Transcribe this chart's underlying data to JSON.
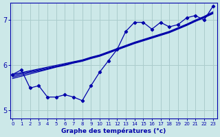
{
  "xlabel": "Graphe des températures (°c)",
  "bg_color": "#cce8e8",
  "grid_color": "#aacccc",
  "line_color": "#0000aa",
  "x_ticks": [
    0,
    1,
    2,
    3,
    4,
    5,
    6,
    7,
    8,
    9,
    10,
    11,
    12,
    13,
    14,
    15,
    16,
    17,
    18,
    19,
    20,
    21,
    22,
    23
  ],
  "y_ticks": [
    5,
    6,
    7
  ],
  "ylim": [
    4.82,
    7.38
  ],
  "xlim": [
    -0.3,
    23.5
  ],
  "smooth1_x": [
    0,
    1,
    2,
    3,
    4,
    5,
    6,
    7,
    8,
    9,
    10,
    11,
    12,
    13,
    14,
    15,
    16,
    17,
    18,
    19,
    20,
    21,
    22,
    23
  ],
  "smooth1_y": [
    5.8,
    5.84,
    5.88,
    5.92,
    5.96,
    6.0,
    6.04,
    6.08,
    6.12,
    6.18,
    6.23,
    6.3,
    6.37,
    6.44,
    6.51,
    6.57,
    6.63,
    6.69,
    6.75,
    6.83,
    6.91,
    7.0,
    7.08,
    7.18
  ],
  "smooth2_x": [
    0,
    1,
    2,
    3,
    4,
    5,
    6,
    7,
    8,
    9,
    10,
    11,
    12,
    13,
    14,
    15,
    16,
    17,
    18,
    19,
    20,
    21,
    22,
    23
  ],
  "smooth2_y": [
    5.77,
    5.82,
    5.86,
    5.9,
    5.94,
    5.98,
    6.02,
    6.07,
    6.11,
    6.17,
    6.22,
    6.29,
    6.36,
    6.43,
    6.5,
    6.56,
    6.62,
    6.68,
    6.74,
    6.82,
    6.9,
    6.99,
    7.07,
    7.16
  ],
  "smooth3_x": [
    0,
    1,
    2,
    3,
    4,
    5,
    6,
    7,
    8,
    9,
    10,
    11,
    12,
    13,
    14,
    15,
    16,
    17,
    18,
    19,
    20,
    21,
    22,
    23
  ],
  "smooth3_y": [
    5.74,
    5.79,
    5.84,
    5.88,
    5.92,
    5.97,
    6.01,
    6.06,
    6.1,
    6.16,
    6.21,
    6.28,
    6.35,
    6.42,
    6.49,
    6.55,
    6.61,
    6.67,
    6.73,
    6.81,
    6.89,
    6.98,
    7.06,
    7.15
  ],
  "smooth4_x": [
    0,
    1,
    2,
    3,
    4,
    5,
    6,
    7,
    8,
    9,
    10,
    11,
    12,
    13,
    14,
    15,
    16,
    17,
    18,
    19,
    20,
    21,
    22,
    23
  ],
  "smooth4_y": [
    5.71,
    5.76,
    5.81,
    5.86,
    5.91,
    5.96,
    6.0,
    6.05,
    6.09,
    6.15,
    6.2,
    6.27,
    6.34,
    6.41,
    6.48,
    6.54,
    6.6,
    6.66,
    6.72,
    6.8,
    6.88,
    6.97,
    7.05,
    7.14
  ],
  "wiggly_x": [
    0,
    1,
    2,
    3,
    4,
    5,
    6,
    7,
    8,
    9,
    10,
    11,
    12,
    13,
    14,
    15,
    16,
    17,
    18,
    19,
    20,
    21,
    22,
    23
  ],
  "wiggly_y": [
    5.8,
    5.9,
    5.5,
    5.55,
    5.3,
    5.3,
    5.35,
    5.3,
    5.22,
    5.55,
    5.85,
    6.1,
    6.35,
    6.75,
    6.95,
    6.95,
    6.8,
    6.95,
    6.85,
    6.9,
    7.05,
    7.1,
    7.0,
    7.3
  ]
}
